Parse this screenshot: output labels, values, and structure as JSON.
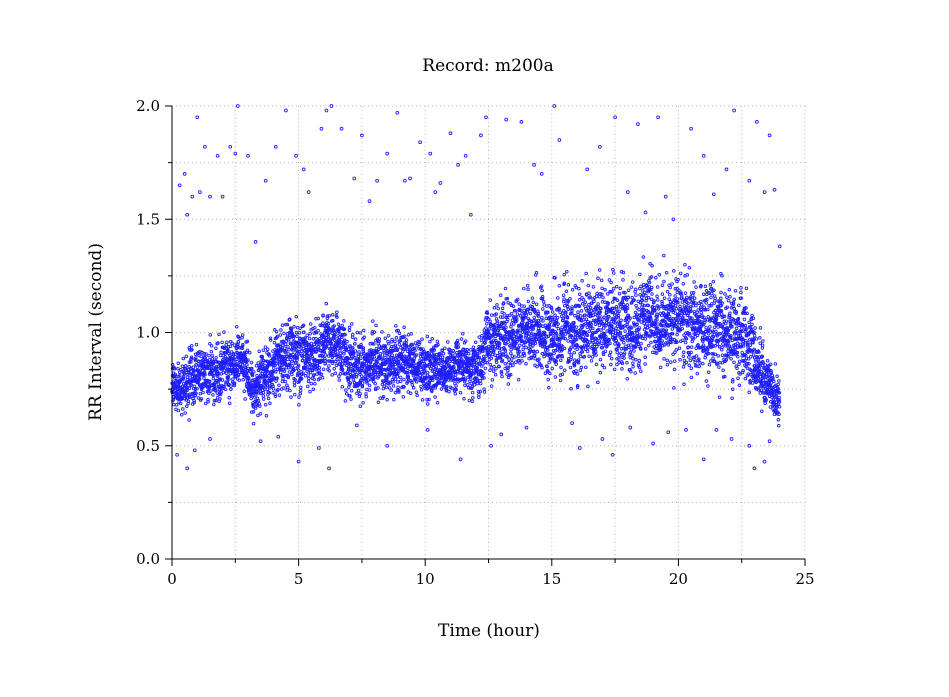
{
  "chart_data": {
    "type": "scatter",
    "title": "Record:  m200a",
    "xlabel": "Time (hour)",
    "ylabel": "RR Interval (second)",
    "xlim": [
      0,
      25
    ],
    "ylim": [
      0.0,
      2.0
    ],
    "xticks": [
      "0",
      "5",
      "10",
      "15",
      "20",
      "25"
    ],
    "yticks": [
      "0.0",
      "0.5",
      "1.0",
      "1.5",
      "2.0"
    ],
    "grid": true,
    "marker_color": "#1e1eff",
    "series": [
      {
        "band": [
          {
            "t": 0.0,
            "center": 0.76,
            "spread": 0.09
          },
          {
            "t": 0.5,
            "center": 0.76,
            "spread": 0.1
          },
          {
            "t": 1.0,
            "center": 0.82,
            "spread": 0.1
          },
          {
            "t": 2.0,
            "center": 0.84,
            "spread": 0.11
          },
          {
            "t": 2.8,
            "center": 0.88,
            "spread": 0.1
          },
          {
            "t": 3.2,
            "center": 0.74,
            "spread": 0.09
          },
          {
            "t": 4.0,
            "center": 0.84,
            "spread": 0.12
          },
          {
            "t": 4.6,
            "center": 0.9,
            "spread": 0.13
          },
          {
            "t": 5.5,
            "center": 0.88,
            "spread": 0.12
          },
          {
            "t": 6.3,
            "center": 0.98,
            "spread": 0.13
          },
          {
            "t": 7.0,
            "center": 0.86,
            "spread": 0.13
          },
          {
            "t": 8.0,
            "center": 0.87,
            "spread": 0.12
          },
          {
            "t": 9.0,
            "center": 0.88,
            "spread": 0.12
          },
          {
            "t": 10.0,
            "center": 0.84,
            "spread": 0.11
          },
          {
            "t": 11.0,
            "center": 0.84,
            "spread": 0.1
          },
          {
            "t": 12.0,
            "center": 0.84,
            "spread": 0.1
          },
          {
            "t": 12.6,
            "center": 0.97,
            "spread": 0.14
          },
          {
            "t": 14.0,
            "center": 1.0,
            "spread": 0.15
          },
          {
            "t": 15.0,
            "center": 1.0,
            "spread": 0.16
          },
          {
            "t": 16.0,
            "center": 1.02,
            "spread": 0.16
          },
          {
            "t": 17.0,
            "center": 1.04,
            "spread": 0.16
          },
          {
            "t": 18.0,
            "center": 1.02,
            "spread": 0.16
          },
          {
            "t": 19.0,
            "center": 1.06,
            "spread": 0.16
          },
          {
            "t": 20.0,
            "center": 1.06,
            "spread": 0.17
          },
          {
            "t": 21.0,
            "center": 1.02,
            "spread": 0.17
          },
          {
            "t": 22.0,
            "center": 1.0,
            "spread": 0.17
          },
          {
            "t": 22.8,
            "center": 0.98,
            "spread": 0.16
          },
          {
            "t": 23.2,
            "center": 0.82,
            "spread": 0.12
          },
          {
            "t": 24.0,
            "center": 0.7,
            "spread": 0.09
          }
        ],
        "outliers": [
          [
            0.3,
            1.65
          ],
          [
            0.5,
            1.7
          ],
          [
            0.6,
            1.52
          ],
          [
            0.8,
            1.6
          ],
          [
            1.0,
            1.95
          ],
          [
            1.1,
            1.62
          ],
          [
            1.3,
            1.82
          ],
          [
            1.5,
            1.6
          ],
          [
            1.8,
            1.78
          ],
          [
            2.0,
            1.6
          ],
          [
            2.3,
            1.82
          ],
          [
            2.5,
            1.79
          ],
          [
            2.6,
            2.0
          ],
          [
            3.0,
            1.78
          ],
          [
            3.3,
            1.4
          ],
          [
            3.7,
            1.67
          ],
          [
            4.1,
            1.82
          ],
          [
            4.5,
            1.98
          ],
          [
            4.9,
            1.78
          ],
          [
            5.2,
            1.72
          ],
          [
            5.4,
            1.62
          ],
          [
            5.9,
            1.9
          ],
          [
            6.1,
            1.98
          ],
          [
            6.3,
            2.0
          ],
          [
            6.7,
            1.9
          ],
          [
            7.2,
            1.68
          ],
          [
            7.5,
            1.87
          ],
          [
            7.8,
            1.58
          ],
          [
            8.1,
            1.67
          ],
          [
            8.5,
            1.79
          ],
          [
            8.9,
            1.97
          ],
          [
            9.2,
            1.67
          ],
          [
            9.4,
            1.68
          ],
          [
            9.8,
            1.84
          ],
          [
            10.2,
            1.79
          ],
          [
            10.4,
            1.62
          ],
          [
            10.6,
            1.66
          ],
          [
            11.0,
            1.88
          ],
          [
            11.3,
            1.74
          ],
          [
            11.6,
            1.78
          ],
          [
            11.8,
            1.52
          ],
          [
            12.2,
            1.87
          ],
          [
            12.4,
            1.95
          ],
          [
            13.2,
            1.94
          ],
          [
            13.8,
            1.93
          ],
          [
            14.3,
            1.74
          ],
          [
            14.6,
            1.7
          ],
          [
            15.1,
            2.0
          ],
          [
            15.3,
            1.85
          ],
          [
            16.4,
            1.72
          ],
          [
            16.9,
            1.82
          ],
          [
            17.5,
            1.95
          ],
          [
            18.0,
            1.62
          ],
          [
            18.4,
            1.92
          ],
          [
            18.7,
            1.53
          ],
          [
            19.2,
            1.95
          ],
          [
            19.5,
            1.6
          ],
          [
            19.8,
            1.5
          ],
          [
            20.5,
            1.9
          ],
          [
            21.0,
            1.78
          ],
          [
            21.4,
            1.61
          ],
          [
            21.9,
            1.72
          ],
          [
            22.2,
            1.98
          ],
          [
            22.8,
            1.67
          ],
          [
            23.1,
            1.93
          ],
          [
            23.4,
            1.62
          ],
          [
            23.6,
            1.87
          ],
          [
            23.8,
            1.63
          ],
          [
            24.0,
            1.38
          ],
          [
            0.2,
            0.46
          ],
          [
            0.6,
            0.4
          ],
          [
            0.9,
            0.48
          ],
          [
            1.5,
            0.53
          ],
          [
            3.5,
            0.52
          ],
          [
            4.2,
            0.54
          ],
          [
            5.0,
            0.43
          ],
          [
            5.8,
            0.49
          ],
          [
            6.2,
            0.4
          ],
          [
            7.3,
            0.59
          ],
          [
            8.5,
            0.5
          ],
          [
            10.1,
            0.57
          ],
          [
            11.4,
            0.44
          ],
          [
            12.6,
            0.5
          ],
          [
            13.0,
            0.55
          ],
          [
            14.0,
            0.58
          ],
          [
            15.8,
            0.6
          ],
          [
            16.1,
            0.49
          ],
          [
            17.0,
            0.53
          ],
          [
            17.4,
            0.46
          ],
          [
            18.1,
            0.58
          ],
          [
            19.0,
            0.51
          ],
          [
            19.6,
            0.56
          ],
          [
            20.3,
            0.57
          ],
          [
            21.0,
            0.44
          ],
          [
            21.5,
            0.57
          ],
          [
            22.1,
            0.53
          ],
          [
            22.8,
            0.5
          ],
          [
            23.0,
            0.4
          ],
          [
            23.4,
            0.43
          ],
          [
            23.6,
            0.52
          ]
        ]
      }
    ]
  }
}
